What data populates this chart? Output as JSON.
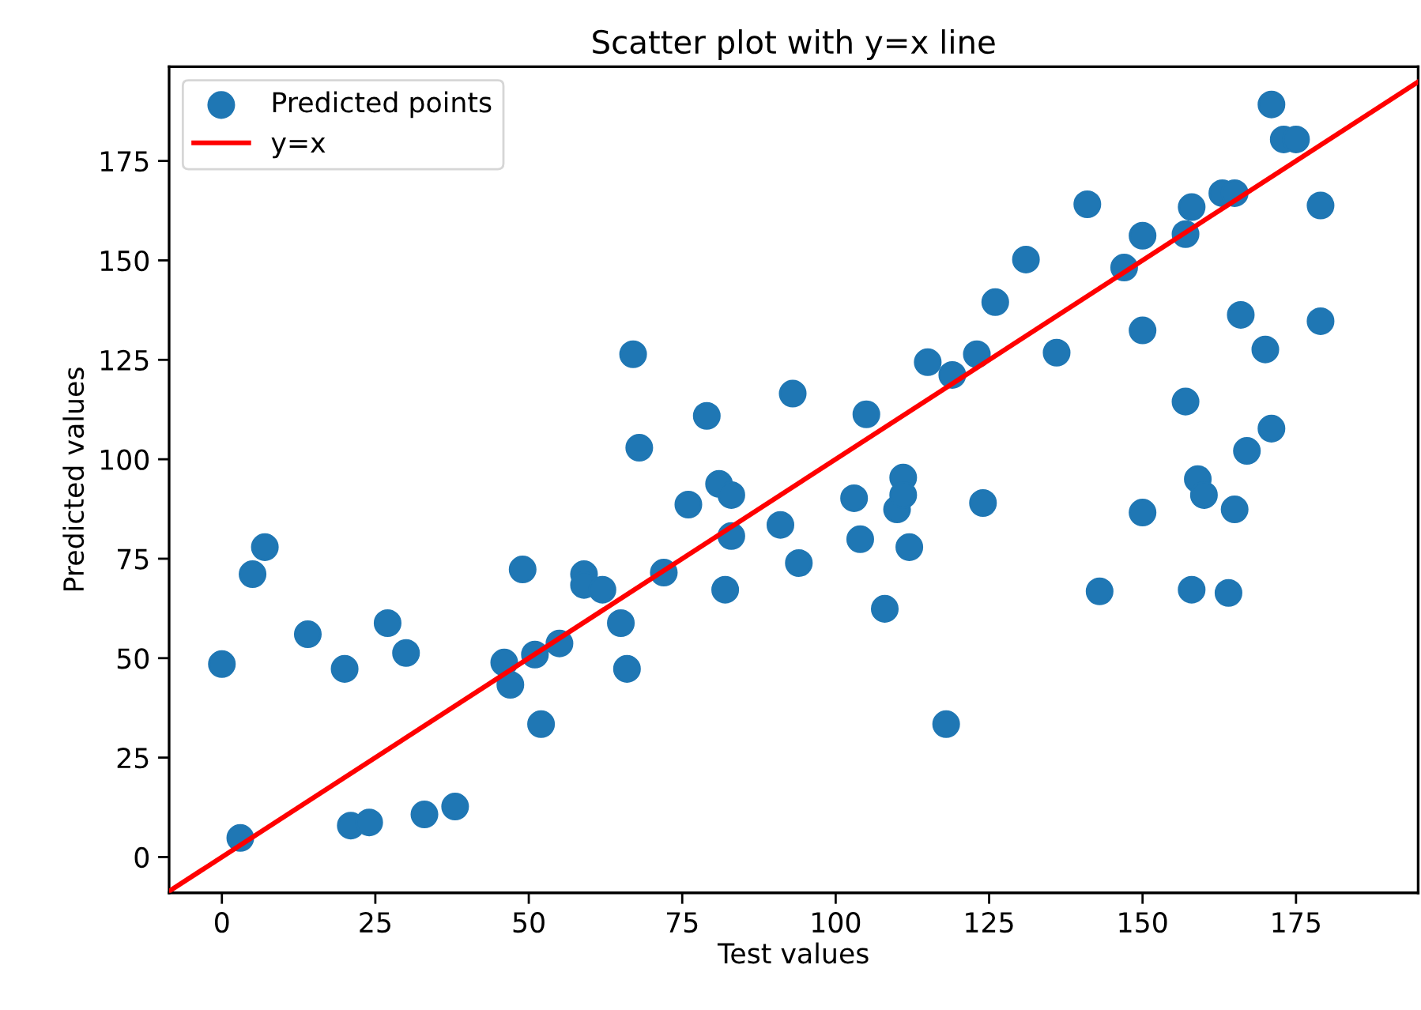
{
  "chart_data": {
    "type": "scatter",
    "title": "Scatter plot with y=x line",
    "xlabel": "Test values",
    "ylabel": "Predicted values",
    "xlim": [
      -8.6,
      194.9
    ],
    "ylim": [
      -9,
      198.7
    ],
    "xticks": [
      0,
      25,
      50,
      75,
      100,
      125,
      150,
      175
    ],
    "yticks": [
      0,
      25,
      50,
      75,
      100,
      125,
      150,
      175
    ],
    "grid": false,
    "legend": "top left",
    "marker": "circle",
    "series": [
      {
        "name": "Predicted points",
        "color": "#1f77b4",
        "x": [
          0,
          3,
          5,
          7,
          14,
          20,
          21,
          24,
          27,
          30,
          33,
          38,
          46,
          47,
          49,
          51,
          52,
          55,
          59,
          59,
          62,
          65,
          66,
          67,
          68,
          72,
          76,
          79,
          81,
          83,
          83,
          82,
          91,
          93,
          94,
          103,
          104,
          105,
          108,
          110,
          111,
          111,
          112,
          115,
          118,
          119,
          123,
          124,
          126,
          131,
          136,
          141,
          143,
          147,
          150,
          150,
          150,
          157,
          157,
          158,
          163,
          165,
          158,
          159,
          160,
          165,
          164,
          166,
          170,
          171,
          167,
          171,
          173,
          175,
          179,
          179
        ],
        "values": [
          48.5,
          4.8,
          71.1,
          77.9,
          56.0,
          47.3,
          7.9,
          8.7,
          58.8,
          51.3,
          10.7,
          12.7,
          48.9,
          43.3,
          72.3,
          50.9,
          33.4,
          53.7,
          71.1,
          68.4,
          67.2,
          58.8,
          47.3,
          126.4,
          102.9,
          71.5,
          88.6,
          110.9,
          93.8,
          91.0,
          80.7,
          67.2,
          83.5,
          116.5,
          73.9,
          90.2,
          79.9,
          111.3,
          62.4,
          87.4,
          95.4,
          91.0,
          77.9,
          124.4,
          33.4,
          121.2,
          126.4,
          89.0,
          139.5,
          150.2,
          126.8,
          164.1,
          66.8,
          148.2,
          132.4,
          86.6,
          156.2,
          156.6,
          114.5,
          163.4,
          166.9,
          166.9,
          67.2,
          95.0,
          91.0,
          87.4,
          66.4,
          136.3,
          127.6,
          107.7,
          102.1,
          189.2,
          180.4,
          180.4,
          163.8,
          134.7
        ]
      },
      {
        "name": "y=x",
        "type": "line",
        "color": "#ff0000",
        "line_style": "solid",
        "marker": "none",
        "x": [
          -8.6,
          194.9
        ],
        "values": [
          -8.6,
          194.9
        ]
      }
    ]
  }
}
